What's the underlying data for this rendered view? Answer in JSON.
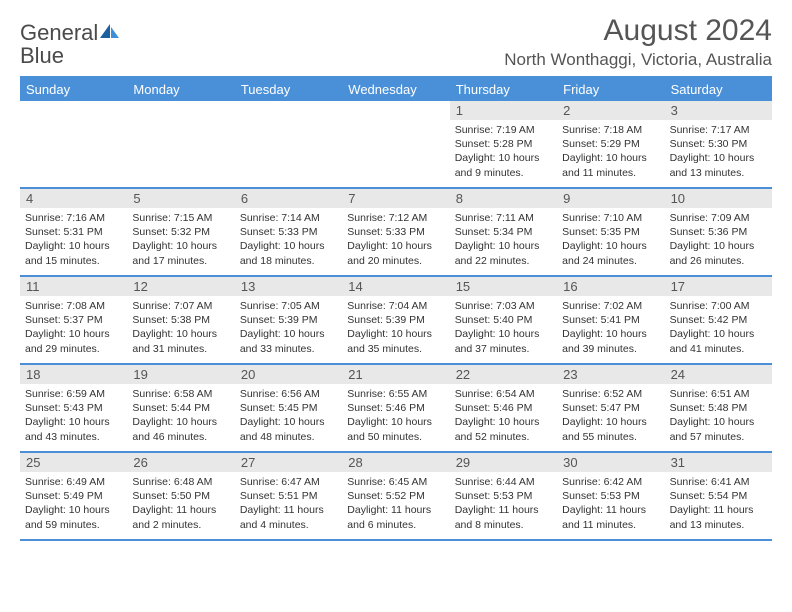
{
  "logo": {
    "text_gray": "General",
    "text_blue": "Blue"
  },
  "title": "August 2024",
  "location": "North Wonthaggi, Victoria, Australia",
  "colors": {
    "accent": "#4a90d9",
    "header_text": "#ffffff",
    "daynum_bg": "#e8e8e8",
    "body_text": "#333333",
    "title_text": "#555555"
  },
  "typography": {
    "month_year_fontsize": 30,
    "location_fontsize": 17,
    "day_header_fontsize": 13,
    "daynum_fontsize": 13,
    "info_fontsize": 10.5
  },
  "day_headers": [
    "Sunday",
    "Monday",
    "Tuesday",
    "Wednesday",
    "Thursday",
    "Friday",
    "Saturday"
  ],
  "weeks": [
    [
      null,
      null,
      null,
      null,
      {
        "n": "1",
        "sunrise": "Sunrise: 7:19 AM",
        "sunset": "Sunset: 5:28 PM",
        "daylight": "Daylight: 10 hours and 9 minutes."
      },
      {
        "n": "2",
        "sunrise": "Sunrise: 7:18 AM",
        "sunset": "Sunset: 5:29 PM",
        "daylight": "Daylight: 10 hours and 11 minutes."
      },
      {
        "n": "3",
        "sunrise": "Sunrise: 7:17 AM",
        "sunset": "Sunset: 5:30 PM",
        "daylight": "Daylight: 10 hours and 13 minutes."
      }
    ],
    [
      {
        "n": "4",
        "sunrise": "Sunrise: 7:16 AM",
        "sunset": "Sunset: 5:31 PM",
        "daylight": "Daylight: 10 hours and 15 minutes."
      },
      {
        "n": "5",
        "sunrise": "Sunrise: 7:15 AM",
        "sunset": "Sunset: 5:32 PM",
        "daylight": "Daylight: 10 hours and 17 minutes."
      },
      {
        "n": "6",
        "sunrise": "Sunrise: 7:14 AM",
        "sunset": "Sunset: 5:33 PM",
        "daylight": "Daylight: 10 hours and 18 minutes."
      },
      {
        "n": "7",
        "sunrise": "Sunrise: 7:12 AM",
        "sunset": "Sunset: 5:33 PM",
        "daylight": "Daylight: 10 hours and 20 minutes."
      },
      {
        "n": "8",
        "sunrise": "Sunrise: 7:11 AM",
        "sunset": "Sunset: 5:34 PM",
        "daylight": "Daylight: 10 hours and 22 minutes."
      },
      {
        "n": "9",
        "sunrise": "Sunrise: 7:10 AM",
        "sunset": "Sunset: 5:35 PM",
        "daylight": "Daylight: 10 hours and 24 minutes."
      },
      {
        "n": "10",
        "sunrise": "Sunrise: 7:09 AM",
        "sunset": "Sunset: 5:36 PM",
        "daylight": "Daylight: 10 hours and 26 minutes."
      }
    ],
    [
      {
        "n": "11",
        "sunrise": "Sunrise: 7:08 AM",
        "sunset": "Sunset: 5:37 PM",
        "daylight": "Daylight: 10 hours and 29 minutes."
      },
      {
        "n": "12",
        "sunrise": "Sunrise: 7:07 AM",
        "sunset": "Sunset: 5:38 PM",
        "daylight": "Daylight: 10 hours and 31 minutes."
      },
      {
        "n": "13",
        "sunrise": "Sunrise: 7:05 AM",
        "sunset": "Sunset: 5:39 PM",
        "daylight": "Daylight: 10 hours and 33 minutes."
      },
      {
        "n": "14",
        "sunrise": "Sunrise: 7:04 AM",
        "sunset": "Sunset: 5:39 PM",
        "daylight": "Daylight: 10 hours and 35 minutes."
      },
      {
        "n": "15",
        "sunrise": "Sunrise: 7:03 AM",
        "sunset": "Sunset: 5:40 PM",
        "daylight": "Daylight: 10 hours and 37 minutes."
      },
      {
        "n": "16",
        "sunrise": "Sunrise: 7:02 AM",
        "sunset": "Sunset: 5:41 PM",
        "daylight": "Daylight: 10 hours and 39 minutes."
      },
      {
        "n": "17",
        "sunrise": "Sunrise: 7:00 AM",
        "sunset": "Sunset: 5:42 PM",
        "daylight": "Daylight: 10 hours and 41 minutes."
      }
    ],
    [
      {
        "n": "18",
        "sunrise": "Sunrise: 6:59 AM",
        "sunset": "Sunset: 5:43 PM",
        "daylight": "Daylight: 10 hours and 43 minutes."
      },
      {
        "n": "19",
        "sunrise": "Sunrise: 6:58 AM",
        "sunset": "Sunset: 5:44 PM",
        "daylight": "Daylight: 10 hours and 46 minutes."
      },
      {
        "n": "20",
        "sunrise": "Sunrise: 6:56 AM",
        "sunset": "Sunset: 5:45 PM",
        "daylight": "Daylight: 10 hours and 48 minutes."
      },
      {
        "n": "21",
        "sunrise": "Sunrise: 6:55 AM",
        "sunset": "Sunset: 5:46 PM",
        "daylight": "Daylight: 10 hours and 50 minutes."
      },
      {
        "n": "22",
        "sunrise": "Sunrise: 6:54 AM",
        "sunset": "Sunset: 5:46 PM",
        "daylight": "Daylight: 10 hours and 52 minutes."
      },
      {
        "n": "23",
        "sunrise": "Sunrise: 6:52 AM",
        "sunset": "Sunset: 5:47 PM",
        "daylight": "Daylight: 10 hours and 55 minutes."
      },
      {
        "n": "24",
        "sunrise": "Sunrise: 6:51 AM",
        "sunset": "Sunset: 5:48 PM",
        "daylight": "Daylight: 10 hours and 57 minutes."
      }
    ],
    [
      {
        "n": "25",
        "sunrise": "Sunrise: 6:49 AM",
        "sunset": "Sunset: 5:49 PM",
        "daylight": "Daylight: 10 hours and 59 minutes."
      },
      {
        "n": "26",
        "sunrise": "Sunrise: 6:48 AM",
        "sunset": "Sunset: 5:50 PM",
        "daylight": "Daylight: 11 hours and 2 minutes."
      },
      {
        "n": "27",
        "sunrise": "Sunrise: 6:47 AM",
        "sunset": "Sunset: 5:51 PM",
        "daylight": "Daylight: 11 hours and 4 minutes."
      },
      {
        "n": "28",
        "sunrise": "Sunrise: 6:45 AM",
        "sunset": "Sunset: 5:52 PM",
        "daylight": "Daylight: 11 hours and 6 minutes."
      },
      {
        "n": "29",
        "sunrise": "Sunrise: 6:44 AM",
        "sunset": "Sunset: 5:53 PM",
        "daylight": "Daylight: 11 hours and 8 minutes."
      },
      {
        "n": "30",
        "sunrise": "Sunrise: 6:42 AM",
        "sunset": "Sunset: 5:53 PM",
        "daylight": "Daylight: 11 hours and 11 minutes."
      },
      {
        "n": "31",
        "sunrise": "Sunrise: 6:41 AM",
        "sunset": "Sunset: 5:54 PM",
        "daylight": "Daylight: 11 hours and 13 minutes."
      }
    ]
  ]
}
